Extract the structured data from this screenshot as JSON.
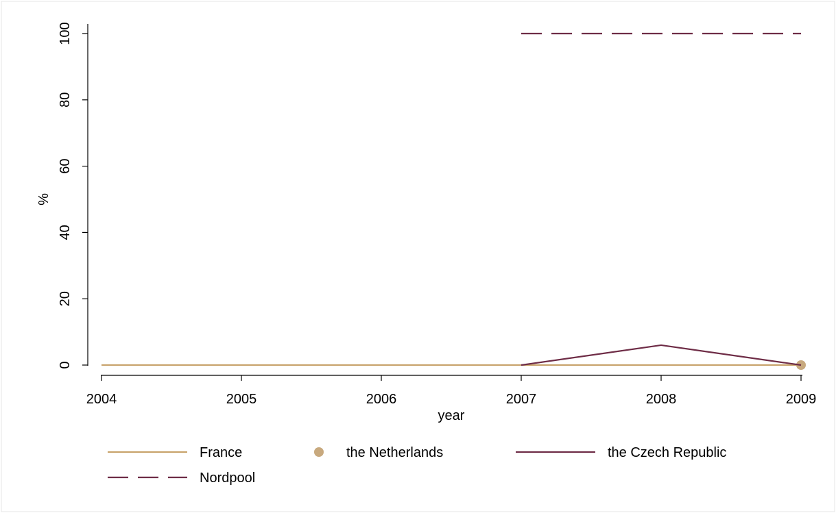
{
  "chart_data": {
    "type": "line",
    "title": "",
    "xlabel": "year",
    "ylabel": "%",
    "x": [
      2004,
      2005,
      2006,
      2007,
      2008,
      2009
    ],
    "xlim": [
      2004,
      2009
    ],
    "ylim": [
      0,
      100
    ],
    "xticks": [
      "2004",
      "2005",
      "2006",
      "2007",
      "2008",
      "2009"
    ],
    "yticks": [
      "0",
      "20",
      "40",
      "60",
      "80",
      "100"
    ],
    "grid": false,
    "legend_position": "bottom",
    "series": [
      {
        "name": "France",
        "style": "solid-line",
        "color": "#C8A36C",
        "points": [
          [
            2004,
            0
          ],
          [
            2005,
            0
          ],
          [
            2006,
            0
          ],
          [
            2007,
            0
          ],
          [
            2008,
            0
          ],
          [
            2009,
            0
          ]
        ]
      },
      {
        "name": "the Netherlands",
        "style": "marker",
        "color": "#C8A97E",
        "points": [
          [
            2009,
            0
          ]
        ]
      },
      {
        "name": "the Czech Republic",
        "style": "solid-line",
        "color": "#6E2C46",
        "points": [
          [
            2007,
            0
          ],
          [
            2008,
            6
          ],
          [
            2009,
            0
          ]
        ]
      },
      {
        "name": "Nordpool",
        "style": "dashed-line",
        "color": "#6E2C46",
        "points": [
          [
            2007,
            100
          ],
          [
            2008,
            100
          ],
          [
            2009,
            100
          ]
        ]
      }
    ]
  }
}
